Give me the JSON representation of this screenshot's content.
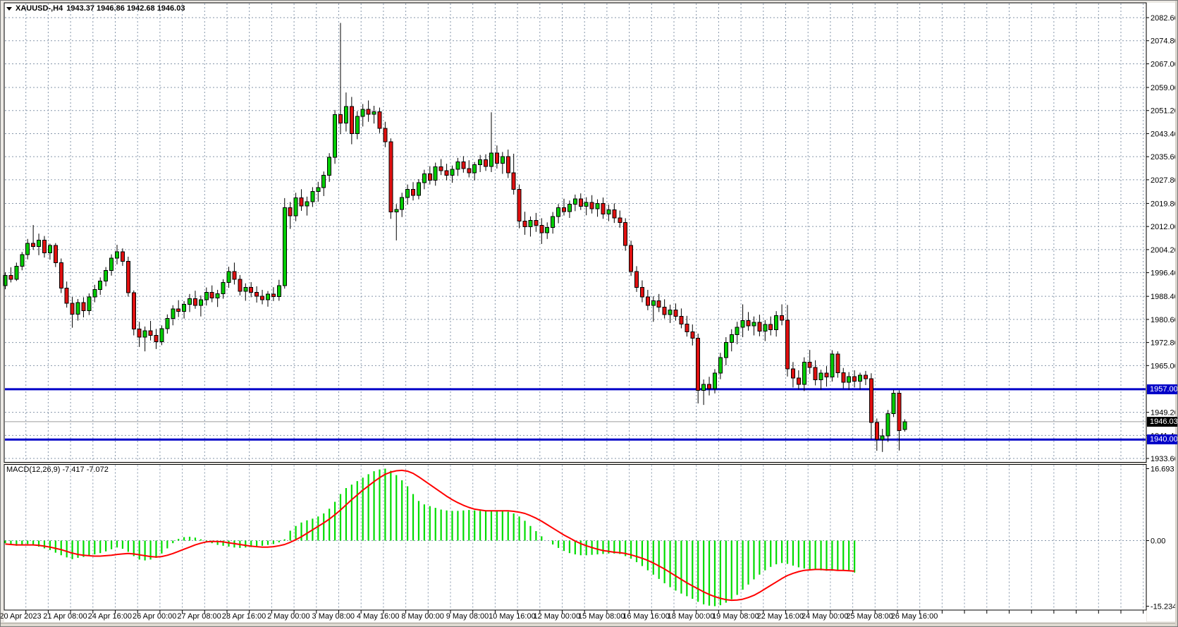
{
  "window": {
    "symbol_title": "XAUUSD-,H4",
    "ohlc_readout": "1943.37 1946.86 1942.68 1946.03"
  },
  "chart_data": {
    "type": "candlestick",
    "symbol": "XAUUSD",
    "timeframe": "H4",
    "title": "XAUUSD-,H4  1943.37 1946.86 1942.68 1946.03",
    "current_bar": {
      "open": 1943.37,
      "high": 1946.86,
      "low": 1942.68,
      "close": 1946.03
    },
    "ylim_main": [
      1933.6,
      2082.6
    ],
    "ylim_macd": [
      -15.234,
      16.693
    ],
    "grid": true,
    "legend_position": "none",
    "price_axis_labels": [
      "2082.60",
      "2074.80",
      "2067.00",
      "2059.00",
      "2051.20",
      "2043.40",
      "2035.60",
      "2027.80",
      "2019.80",
      "2012.00",
      "2004.20",
      "1996.40",
      "1988.40",
      "1980.60",
      "1972.80",
      "1965.00",
      "1949.20",
      "1941.40",
      "1933.60"
    ],
    "line_labels": [
      {
        "text": "1957.00",
        "price": 1957.0,
        "bg": "#0000C8",
        "role": "resistance"
      },
      {
        "text": "1946.03",
        "price": 1946.03,
        "bg": "#000000",
        "role": "current-price"
      },
      {
        "text": "1940.00",
        "price": 1940.0,
        "bg": "#0000C8",
        "role": "support"
      }
    ],
    "levels": {
      "resistance": 1957.0,
      "current": 1946.03,
      "support": 1940.0
    },
    "time_axis_labels": [
      "20 Apr 2023",
      "21 Apr 08:00",
      "24 Apr 16:00",
      "26 Apr 00:00",
      "27 Apr 08:00",
      "28 Apr 16:00",
      "2 May 00:00",
      "3 May 08:00",
      "4 May 16:00",
      "8 May 00:00",
      "9 May 08:00",
      "10 May 16:00",
      "12 May 00:00",
      "15 May 08:00",
      "16 May 16:00",
      "18 May 00:00",
      "19 May 08:00",
      "22 May 16:00",
      "24 May 00:00",
      "25 May 08:00",
      "26 May 16:00"
    ],
    "candles": [
      [
        1992.0,
        1996.5,
        1990.8,
        1995.5
      ],
      [
        1995.5,
        1998.2,
        1993.1,
        1994.2
      ],
      [
        1994.2,
        1999.8,
        1993.6,
        1998.6
      ],
      [
        1998.6,
        2003.4,
        1997.2,
        2002.5
      ],
      [
        2002.5,
        2007.8,
        2000.9,
        2006.3
      ],
      [
        2006.3,
        2012.5,
        2004.1,
        2005.2
      ],
      [
        2005.2,
        2009.6,
        2002.3,
        2007.4
      ],
      [
        2007.4,
        2008.8,
        2001.5,
        2003.1
      ],
      [
        2003.1,
        2006.2,
        2000.8,
        2005.6
      ],
      [
        2005.6,
        2006.4,
        1998.3,
        1999.8
      ],
      [
        1999.8,
        2001.2,
        1989.5,
        1991.2
      ],
      [
        1991.2,
        1993.4,
        1984.6,
        1986.1
      ],
      [
        1986.1,
        1988.2,
        1977.8,
        1982.4
      ],
      [
        1982.4,
        1987.5,
        1980.2,
        1986.3
      ],
      [
        1986.3,
        1988.1,
        1981.3,
        1983.5
      ],
      [
        1983.5,
        1989.4,
        1982.1,
        1988.2
      ],
      [
        1988.2,
        1992.3,
        1986.4,
        1990.7
      ],
      [
        1990.7,
        1994.8,
        1988.9,
        1993.6
      ],
      [
        1993.6,
        1998.3,
        1991.8,
        1997.2
      ],
      [
        1997.2,
        2002.6,
        1995.4,
        2001.3
      ],
      [
        2001.3,
        2005.8,
        1999.2,
        2003.4
      ],
      [
        2003.4,
        2004.6,
        1998.7,
        2000.2
      ],
      [
        2000.2,
        2001.8,
        1988.3,
        1989.6
      ],
      [
        1989.6,
        1990.4,
        1975.2,
        1977.3
      ],
      [
        1977.3,
        1979.8,
        1971.3,
        1974.6
      ],
      [
        1974.6,
        1978.2,
        1969.8,
        1976.8
      ],
      [
        1976.8,
        1980.1,
        1973.5,
        1975.2
      ],
      [
        1975.2,
        1977.4,
        1970.6,
        1973.1
      ],
      [
        1973.1,
        1978.6,
        1971.9,
        1977.5
      ],
      [
        1977.5,
        1982.3,
        1975.8,
        1980.9
      ],
      [
        1980.9,
        1985.4,
        1978.6,
        1984.2
      ],
      [
        1984.2,
        1987.1,
        1981.4,
        1983.3
      ],
      [
        1983.3,
        1986.8,
        1980.9,
        1985.7
      ],
      [
        1985.7,
        1989.2,
        1983.1,
        1987.6
      ],
      [
        1987.6,
        1990.3,
        1984.2,
        1985.4
      ],
      [
        1985.4,
        1988.7,
        1981.6,
        1987.2
      ],
      [
        1987.2,
        1991.4,
        1985.3,
        1989.8
      ],
      [
        1989.8,
        1992.1,
        1986.4,
        1987.9
      ],
      [
        1987.9,
        1990.6,
        1984.8,
        1989.3
      ],
      [
        1989.3,
        1994.2,
        1987.6,
        1993.1
      ],
      [
        1993.1,
        1998.4,
        1991.3,
        1996.8
      ],
      [
        1996.8,
        1999.8,
        1992.4,
        1994.2
      ],
      [
        1994.2,
        1995.6,
        1988.7,
        1990.1
      ],
      [
        1990.1,
        1992.8,
        1986.9,
        1991.4
      ],
      [
        1991.4,
        1993.2,
        1988.1,
        1989.7
      ],
      [
        1989.7,
        1991.8,
        1986.3,
        1988.4
      ],
      [
        1988.4,
        1990.6,
        1985.7,
        1987.2
      ],
      [
        1987.2,
        1990.2,
        1984.9,
        1989.1
      ],
      [
        1989.1,
        1991.5,
        1986.8,
        1988.3
      ],
      [
        1988.3,
        1994.0,
        1986.9,
        1992.0
      ],
      [
        1992.0,
        2021.6,
        1991.0,
        2018.4
      ],
      [
        2018.4,
        2020.3,
        2011.2,
        2015.6
      ],
      [
        2015.6,
        2023.4,
        2013.8,
        2021.7
      ],
      [
        2021.7,
        2024.6,
        2017.3,
        2018.9
      ],
      [
        2018.9,
        2022.1,
        2015.7,
        2020.4
      ],
      [
        2020.4,
        2025.3,
        2018.6,
        2023.8
      ],
      [
        2023.8,
        2027.1,
        2020.4,
        2025.2
      ],
      [
        2025.2,
        2030.6,
        2022.3,
        2029.3
      ],
      [
        2029.3,
        2036.8,
        2027.1,
        2035.4
      ],
      [
        2035.4,
        2051.4,
        2033.2,
        2049.8
      ],
      [
        2049.8,
        2080.8,
        2043.2,
        2047.0
      ],
      [
        2047.0,
        2057.3,
        2044.1,
        2052.6
      ],
      [
        2052.6,
        2055.8,
        2039.8,
        2043.4
      ],
      [
        2043.4,
        2051.0,
        2041.5,
        2049.2
      ],
      [
        2049.2,
        2053.4,
        2045.8,
        2051.6
      ],
      [
        2051.6,
        2054.6,
        2047.4,
        2049.9
      ],
      [
        2049.9,
        2052.8,
        2046.8,
        2050.8
      ],
      [
        2050.8,
        2052.2,
        2043.6,
        2045.2
      ],
      [
        2045.2,
        2047.4,
        2038.8,
        2040.6
      ],
      [
        2040.6,
        2041.8,
        2014.6,
        2016.9
      ],
      [
        2016.9,
        2019.6,
        2007.3,
        2017.8
      ],
      [
        2017.8,
        2023.4,
        2015.2,
        2021.8
      ],
      [
        2021.8,
        2026.2,
        2019.4,
        2024.6
      ],
      [
        2024.6,
        2027.0,
        2020.8,
        2022.5
      ],
      [
        2022.5,
        2028.0,
        2021.2,
        2026.8
      ],
      [
        2026.8,
        2031.2,
        2024.6,
        2029.8
      ],
      [
        2029.8,
        2032.4,
        2026.2,
        2027.6
      ],
      [
        2027.6,
        2033.6,
        2025.8,
        2032.2
      ],
      [
        2032.2,
        2034.8,
        2029.4,
        2030.9
      ],
      [
        2030.9,
        2033.2,
        2027.6,
        2029.3
      ],
      [
        2029.3,
        2032.6,
        2026.8,
        2031.4
      ],
      [
        2031.4,
        2035.2,
        2029.1,
        2033.8
      ],
      [
        2033.8,
        2035.8,
        2030.2,
        2031.6
      ],
      [
        2031.6,
        2034.4,
        2028.6,
        2030.2
      ],
      [
        2030.2,
        2033.8,
        2027.6,
        2032.9
      ],
      [
        2032.9,
        2036.2,
        2030.4,
        2034.6
      ],
      [
        2034.6,
        2036.4,
        2030.8,
        2032.3
      ],
      [
        2032.3,
        2050.6,
        2030.4,
        2036.8
      ],
      [
        2036.8,
        2039.4,
        2031.6,
        2033.4
      ],
      [
        2033.4,
        2037.2,
        2029.8,
        2035.6
      ],
      [
        2035.6,
        2038.0,
        2028.4,
        2030.1
      ],
      [
        2030.1,
        2036.6,
        2022.8,
        2024.5
      ],
      [
        2024.5,
        2026.2,
        2011.4,
        2013.8
      ],
      [
        2013.8,
        2017.0,
        2009.2,
        2011.9
      ],
      [
        2011.9,
        2015.4,
        2008.6,
        2014.1
      ],
      [
        2014.1,
        2016.6,
        2010.2,
        2012.4
      ],
      [
        2012.4,
        2014.8,
        2006.1,
        2009.9
      ],
      [
        2009.9,
        2013.4,
        2007.8,
        2011.7
      ],
      [
        2011.7,
        2016.9,
        2009.6,
        2015.4
      ],
      [
        2015.4,
        2019.6,
        2013.1,
        2018.3
      ],
      [
        2018.3,
        2021.4,
        2015.7,
        2017.0
      ],
      [
        2017.0,
        2020.8,
        2014.9,
        2019.6
      ],
      [
        2019.6,
        2022.8,
        2017.2,
        2021.3
      ],
      [
        2021.3,
        2023.2,
        2017.6,
        2018.8
      ],
      [
        2018.8,
        2021.9,
        2015.8,
        2020.1
      ],
      [
        2020.1,
        2022.6,
        2016.4,
        2018.0
      ],
      [
        2018.0,
        2021.2,
        2015.3,
        2019.8
      ],
      [
        2019.8,
        2021.8,
        2014.6,
        2016.2
      ],
      [
        2016.2,
        2019.4,
        2013.8,
        2017.6
      ],
      [
        2017.6,
        2019.8,
        2013.2,
        2014.9
      ],
      [
        2014.9,
        2017.4,
        2011.6,
        2013.4
      ],
      [
        2013.4,
        2014.8,
        2003.8,
        2005.6
      ],
      [
        2005.6,
        2007.2,
        1995.3,
        1996.8
      ],
      [
        1996.8,
        1998.6,
        1989.9,
        1991.4
      ],
      [
        1991.4,
        1993.8,
        1986.4,
        1988.2
      ],
      [
        1988.2,
        1990.6,
        1983.7,
        1985.3
      ],
      [
        1985.3,
        1988.4,
        1979.8,
        1986.9
      ],
      [
        1986.9,
        1989.2,
        1983.1,
        1984.7
      ],
      [
        1984.7,
        1987.4,
        1980.9,
        1982.3
      ],
      [
        1982.3,
        1985.6,
        1979.4,
        1983.8
      ],
      [
        1983.8,
        1986.0,
        1980.2,
        1981.6
      ],
      [
        1981.6,
        1984.3,
        1977.6,
        1979.0
      ],
      [
        1979.0,
        1981.8,
        1974.8,
        1976.4
      ],
      [
        1976.4,
        1978.9,
        1971.8,
        1974.3
      ],
      [
        1974.3,
        1975.8,
        1952.2,
        1956.6
      ],
      [
        1956.6,
        1960.3,
        1951.7,
        1958.7
      ],
      [
        1958.7,
        1961.2,
        1954.9,
        1957.2
      ],
      [
        1957.2,
        1963.8,
        1955.6,
        1962.5
      ],
      [
        1962.5,
        1969.3,
        1960.4,
        1967.7
      ],
      [
        1967.7,
        1974.6,
        1965.1,
        1972.8
      ],
      [
        1972.8,
        1977.3,
        1969.8,
        1975.4
      ],
      [
        1975.4,
        1979.8,
        1972.2,
        1977.9
      ],
      [
        1977.9,
        1985.7,
        1974.6,
        1980.2
      ],
      [
        1980.2,
        1983.1,
        1976.8,
        1978.4
      ],
      [
        1978.4,
        1981.6,
        1975.2,
        1979.6
      ],
      [
        1979.6,
        1982.2,
        1974.9,
        1976.7
      ],
      [
        1976.7,
        1980.4,
        1973.3,
        1978.9
      ],
      [
        1978.9,
        1981.6,
        1975.2,
        1977.1
      ],
      [
        1977.1,
        1983.4,
        1974.8,
        1981.9
      ],
      [
        1981.9,
        1985.7,
        1978.6,
        1980.3
      ],
      [
        1980.3,
        1985.5,
        1961.3,
        1963.9
      ],
      [
        1963.9,
        1966.2,
        1957.6,
        1960.8
      ],
      [
        1960.8,
        1963.4,
        1956.9,
        1958.7
      ],
      [
        1958.7,
        1967.8,
        1956.4,
        1966.1
      ],
      [
        1966.1,
        1970.3,
        1962.2,
        1964.4
      ],
      [
        1964.4,
        1966.8,
        1958.3,
        1960.2
      ],
      [
        1960.2,
        1963.6,
        1956.8,
        1962.4
      ],
      [
        1962.4,
        1964.8,
        1957.9,
        1961.2
      ],
      [
        1961.2,
        1970.2,
        1959.6,
        1968.9
      ],
      [
        1968.9,
        1969.8,
        1960.9,
        1962.6
      ],
      [
        1962.6,
        1964.2,
        1957.3,
        1959.4
      ],
      [
        1959.4,
        1962.8,
        1956.8,
        1961.3
      ],
      [
        1961.3,
        1963.4,
        1957.6,
        1959.7
      ],
      [
        1959.7,
        1962.6,
        1956.9,
        1961.8
      ],
      [
        1961.8,
        1963.2,
        1958.4,
        1960.6
      ],
      [
        1960.6,
        1962.4,
        1940.2,
        1945.8
      ],
      [
        1945.8,
        1947.1,
        1936.2,
        1940.1
      ],
      [
        1940.1,
        1943.6,
        1935.8,
        1941.3
      ],
      [
        1941.3,
        1950.0,
        1939.2,
        1948.7
      ],
      [
        1948.7,
        1956.8,
        1947.6,
        1955.7
      ],
      [
        1955.7,
        1956.6,
        1936.3,
        1943.0
      ],
      [
        1943.37,
        1946.86,
        1942.68,
        1946.03
      ]
    ],
    "macd": {
      "label": "MACD(12,26,9) -7.417 -7.072",
      "params": "12,26,9",
      "value_main": -7.417,
      "value_signal": -7.072,
      "axis_labels": [
        "16.693",
        "0.00",
        "-15.234"
      ],
      "axis_values": [
        16.693,
        0.0,
        -15.234
      ],
      "hist": [
        -0.6,
        -0.9,
        -1.2,
        -1.0,
        -0.8,
        -0.9,
        -1.4,
        -1.8,
        -2.2,
        -2.8,
        -3.4,
        -3.9,
        -4.3,
        -4.0,
        -3.8,
        -3.5,
        -3.2,
        -2.9,
        -2.5,
        -2.0,
        -1.6,
        -1.9,
        -2.6,
        -3.6,
        -4.4,
        -4.6,
        -4.4,
        -4.0,
        -3.0,
        -1.8,
        -0.6,
        0.4,
        0.8,
        0.9,
        0.7,
        0.3,
        -0.2,
        -0.6,
        -1.0,
        -1.2,
        -1.4,
        -1.6,
        -1.7,
        -1.6,
        -1.5,
        -1.4,
        -1.2,
        -1.0,
        -0.8,
        -0.4,
        0.3,
        2.3,
        3.4,
        4.2,
        4.7,
        5.1,
        5.6,
        6.3,
        7.4,
        9.0,
        10.8,
        12.2,
        13.0,
        13.8,
        14.6,
        15.4,
        16.1,
        16.5,
        16.69,
        16.2,
        15.2,
        14.0,
        12.6,
        10.8,
        9.2,
        8.4,
        8.0,
        7.6,
        7.2,
        7.0,
        6.9,
        6.9,
        7.0,
        7.1,
        7.0,
        6.9,
        6.8,
        6.9,
        7.0,
        6.9,
        6.7,
        6.3,
        5.6,
        4.6,
        3.4,
        2.2,
        1.0,
        0.0,
        -0.9,
        -1.7,
        -2.4,
        -2.9,
        -3.2,
        -3.4,
        -3.4,
        -3.3,
        -3.2,
        -3.1,
        -3.0,
        -3.0,
        -3.1,
        -3.6,
        -4.2,
        -5.0,
        -5.9,
        -6.9,
        -7.9,
        -8.9,
        -9.9,
        -10.8,
        -11.6,
        -12.3,
        -12.9,
        -13.5,
        -14.2,
        -14.8,
        -15.1,
        -15.23,
        -15.0,
        -14.4,
        -13.6,
        -12.6,
        -11.4,
        -10.2,
        -9.0,
        -7.9,
        -6.9,
        -6.1,
        -5.5,
        -5.2,
        -5.4,
        -5.8,
        -6.2,
        -6.5,
        -6.7,
        -6.8,
        -6.9,
        -7.0,
        -7.0,
        -6.9,
        -6.9,
        -7.1,
        -7.417
      ],
      "signal": [
        -0.8,
        -0.9,
        -1.0,
        -1.0,
        -1.0,
        -1.0,
        -1.1,
        -1.3,
        -1.5,
        -1.8,
        -2.1,
        -2.5,
        -2.9,
        -3.2,
        -3.4,
        -3.5,
        -3.6,
        -3.6,
        -3.5,
        -3.4,
        -3.2,
        -3.1,
        -3.0,
        -3.1,
        -3.3,
        -3.5,
        -3.7,
        -3.8,
        -3.7,
        -3.4,
        -3.0,
        -2.5,
        -2.0,
        -1.5,
        -1.0,
        -0.6,
        -0.3,
        -0.2,
        -0.2,
        -0.3,
        -0.5,
        -0.7,
        -0.9,
        -1.1,
        -1.3,
        -1.4,
        -1.5,
        -1.5,
        -1.4,
        -1.2,
        -0.9,
        -0.4,
        0.2,
        0.9,
        1.7,
        2.5,
        3.3,
        4.1,
        5.0,
        6.0,
        7.1,
        8.3,
        9.5,
        10.6,
        11.7,
        12.7,
        13.7,
        14.6,
        15.4,
        15.9,
        16.2,
        16.3,
        16.1,
        15.6,
        14.8,
        13.9,
        13.0,
        12.1,
        11.2,
        10.3,
        9.5,
        8.8,
        8.2,
        7.7,
        7.3,
        7.1,
        6.9,
        6.9,
        6.9,
        6.9,
        6.9,
        6.8,
        6.6,
        6.3,
        5.8,
        5.2,
        4.5,
        3.7,
        2.9,
        2.1,
        1.3,
        0.6,
        -0.1,
        -0.7,
        -1.2,
        -1.6,
        -2.0,
        -2.3,
        -2.5,
        -2.7,
        -2.8,
        -3.0,
        -3.3,
        -3.7,
        -4.1,
        -4.6,
        -5.2,
        -5.9,
        -6.6,
        -7.4,
        -8.2,
        -9.0,
        -9.8,
        -10.5,
        -11.2,
        -11.9,
        -12.5,
        -13.0,
        -13.4,
        -13.7,
        -13.85,
        -13.8,
        -13.6,
        -13.2,
        -12.7,
        -12.0,
        -11.2,
        -10.4,
        -9.6,
        -8.8,
        -8.1,
        -7.6,
        -7.2,
        -6.9,
        -6.8,
        -6.7,
        -6.7,
        -6.8,
        -6.8,
        -6.9,
        -6.9,
        -7.0,
        -7.072
      ]
    }
  },
  "colors": {
    "bull": "#00CC00",
    "bear": "#E01010",
    "wick": "#000000",
    "grid": "#8696AA",
    "level_blue": "#0000C8",
    "current_line": "#9C9C9C",
    "macd_hist": "#00DD00",
    "macd_signal": "#FF0000",
    "panel_bg": "#FFFFFF",
    "window_bg": "#ECE9E4",
    "axis_text": "#000000"
  }
}
